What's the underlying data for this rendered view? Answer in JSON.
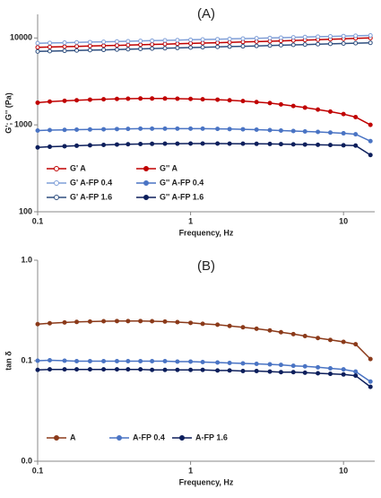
{
  "chart_data": [
    {
      "type": "line",
      "title": "(A)",
      "x_label": "Frequency, Hz",
      "y_label": "G'; G'' (Pa)",
      "log_x": true,
      "log_y": true,
      "legend": "lower left",
      "xlim": [
        0.1,
        16
      ],
      "xticks": [
        0.1,
        1,
        10
      ],
      "ylim": [
        100,
        18700
      ],
      "yticks": [
        100,
        1000,
        10000
      ],
      "x": [
        0.1,
        0.12,
        0.15,
        0.18,
        0.22,
        0.27,
        0.33,
        0.39,
        0.47,
        0.56,
        0.68,
        0.82,
        1,
        1.2,
        1.5,
        1.8,
        2.2,
        2.7,
        3.3,
        3.9,
        4.7,
        5.6,
        6.8,
        8.2,
        10,
        12,
        15
      ],
      "series": [
        {
          "name": "G' A",
          "color": "#c00000",
          "marker": "open",
          "values": [
            7800,
            7870,
            7940,
            8010,
            8080,
            8150,
            8220,
            8290,
            8360,
            8430,
            8500,
            8580,
            8660,
            8740,
            8820,
            8900,
            8990,
            9080,
            9170,
            9260,
            9360,
            9460,
            9560,
            9670,
            9780,
            9890,
            10000
          ]
        },
        {
          "name": "G'' A",
          "color": "#c00000",
          "marker": "filled",
          "values": [
            1800,
            1850,
            1890,
            1920,
            1950,
            1970,
            1990,
            2000,
            2010,
            2010,
            2010,
            2000,
            1990,
            1970,
            1950,
            1920,
            1880,
            1830,
            1780,
            1720,
            1650,
            1580,
            1500,
            1420,
            1330,
            1230,
            1000
          ]
        },
        {
          "name": "G' A-FP 0.4",
          "color": "#7f9fd8",
          "marker": "open",
          "values": [
            8700,
            8760,
            8830,
            8900,
            8960,
            9030,
            9100,
            9170,
            9240,
            9310,
            9380,
            9450,
            9530,
            9600,
            9680,
            9760,
            9840,
            9920,
            10000,
            10080,
            10170,
            10250,
            10340,
            10430,
            10520,
            10600,
            10700
          ]
        },
        {
          "name": "G'' A-FP 0.4",
          "color": "#4a74c4",
          "marker": "filled",
          "values": [
            860,
            870,
            875,
            880,
            885,
            890,
            895,
            900,
            905,
            905,
            905,
            905,
            905,
            905,
            900,
            895,
            890,
            880,
            870,
            860,
            850,
            840,
            830,
            815,
            800,
            780,
            650
          ]
        },
        {
          "name": "G' A-FP 1.6",
          "color": "#2f4f7f",
          "marker": "open",
          "values": [
            7000,
            7060,
            7120,
            7180,
            7240,
            7300,
            7360,
            7420,
            7490,
            7550,
            7620,
            7680,
            7750,
            7820,
            7890,
            7960,
            8030,
            8100,
            8180,
            8250,
            8330,
            8400,
            8480,
            8560,
            8640,
            8720,
            8800
          ]
        },
        {
          "name": "G'' A-FP 1.6",
          "color": "#0d1f5c",
          "marker": "filled",
          "values": [
            550,
            560,
            568,
            575,
            582,
            588,
            594,
            598,
            602,
            605,
            607,
            608,
            609,
            609,
            609,
            608,
            607,
            605,
            603,
            600,
            597,
            594,
            590,
            586,
            582,
            578,
            450
          ]
        }
      ]
    },
    {
      "type": "line",
      "title": "(B)",
      "x_label": "Frequency, Hz",
      "y_label": "tan δ",
      "log_x": true,
      "log_y": true,
      "legend": "lower left",
      "xlim": [
        0.1,
        16
      ],
      "xticks": [
        0.1,
        1,
        10
      ],
      "ylim": [
        0.01,
        1
      ],
      "yticks": [
        {
          "value": 0.01,
          "label": "0.0"
        },
        0.1,
        {
          "value": 1,
          "label": "1.0"
        }
      ],
      "x": [
        0.1,
        0.12,
        0.15,
        0.18,
        0.22,
        0.27,
        0.33,
        0.39,
        0.47,
        0.56,
        0.68,
        0.82,
        1,
        1.2,
        1.5,
        1.8,
        2.2,
        2.7,
        3.3,
        3.9,
        4.7,
        5.6,
        6.8,
        8.2,
        10,
        12,
        15
      ],
      "series": [
        {
          "name": "A",
          "color": "#8b3a1a",
          "marker": "filled",
          "values": [
            0.231,
            0.236,
            0.24,
            0.243,
            0.245,
            0.247,
            0.248,
            0.248,
            0.248,
            0.247,
            0.245,
            0.242,
            0.238,
            0.233,
            0.228,
            0.222,
            0.215,
            0.208,
            0.2,
            0.192,
            0.184,
            0.176,
            0.168,
            0.161,
            0.154,
            0.146,
            0.104
          ]
        },
        {
          "name": "A-FP 0.4",
          "color": "#4a74c4",
          "marker": "filled",
          "values": [
            0.1,
            0.101,
            0.1,
            0.099,
            0.099,
            0.099,
            0.099,
            0.099,
            0.099,
            0.099,
            0.099,
            0.098,
            0.098,
            0.097,
            0.096,
            0.095,
            0.094,
            0.093,
            0.092,
            0.091,
            0.089,
            0.088,
            0.086,
            0.084,
            0.082,
            0.078,
            0.062
          ]
        },
        {
          "name": "A-FP 1.6",
          "color": "#0d1f5c",
          "marker": "filled",
          "values": [
            0.081,
            0.082,
            0.082,
            0.082,
            0.082,
            0.082,
            0.082,
            0.082,
            0.082,
            0.081,
            0.081,
            0.081,
            0.081,
            0.081,
            0.08,
            0.08,
            0.079,
            0.079,
            0.078,
            0.077,
            0.077,
            0.076,
            0.075,
            0.074,
            0.073,
            0.071,
            0.055
          ]
        }
      ]
    }
  ]
}
